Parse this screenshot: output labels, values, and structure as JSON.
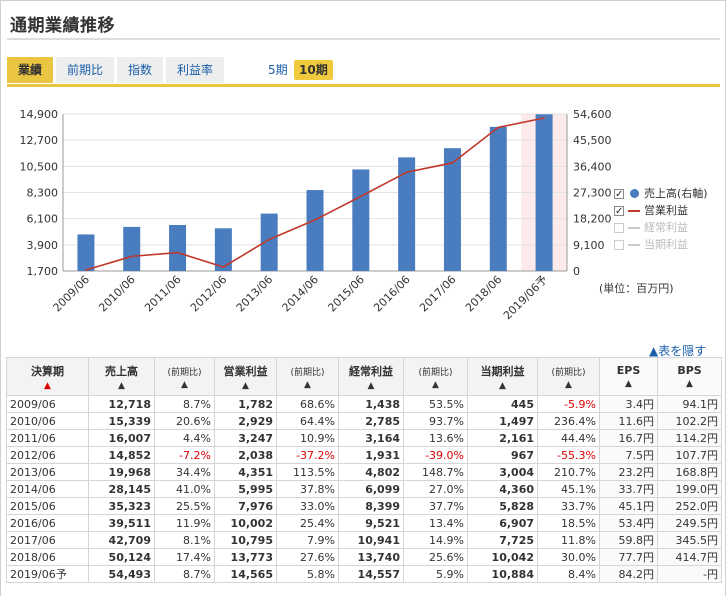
{
  "title": "通期業績推移",
  "tabs": [
    "業績",
    "前期比",
    "指数",
    "利益率"
  ],
  "periods": [
    "5期",
    "10期"
  ],
  "legend": [
    {
      "label": "売上高(右軸)",
      "checked": true
    },
    {
      "label": "営業利益",
      "checked": true
    },
    {
      "label": "経常利益",
      "checked": false
    },
    {
      "label": "当期利益",
      "checked": false
    }
  ],
  "unit_note": "(単位：百万円)",
  "hide_table": "▲表を隠す",
  "chart_data": {
    "type": "bar",
    "categories": [
      "2009/06",
      "2010/06",
      "2011/06",
      "2012/06",
      "2013/06",
      "2014/06",
      "2015/06",
      "2016/06",
      "2017/06",
      "2018/06",
      "2019/06予"
    ],
    "left_axis_ticks": [
      "14,900",
      "12,700",
      "10,500",
      "8,300",
      "6,100",
      "3,900",
      "1,700"
    ],
    "right_axis_ticks": [
      "54,600",
      "45,500",
      "36,400",
      "27,300",
      "18,200",
      "9,100",
      "0"
    ],
    "left_axis_range": [
      1700,
      14900
    ],
    "right_axis_range": [
      0,
      54600
    ],
    "series": [
      {
        "name": "売上高(右軸)",
        "type": "bar",
        "axis": "right",
        "color": "#4a7cc0",
        "values": [
          12718,
          15339,
          16007,
          14852,
          19968,
          28145,
          35323,
          39511,
          42709,
          50124,
          54493
        ]
      },
      {
        "name": "営業利益",
        "type": "line",
        "axis": "left",
        "color": "#c0392b",
        "values": [
          1782,
          2929,
          3247,
          2038,
          4351,
          5995,
          7976,
          10002,
          10795,
          13773,
          14565
        ]
      }
    ],
    "highlight_last": true,
    "grid": "horizontal"
  },
  "table": {
    "headers": {
      "year": "決算期",
      "sales": "売上高",
      "op": "営業利益",
      "ord": "経常利益",
      "net": "当期利益",
      "yoy": "(前期比)",
      "eps": "EPS",
      "bps": "BPS",
      "arrow_year": "▲",
      "arrow": "▲"
    },
    "rows": [
      [
        "2009/06",
        "12,718",
        "8.7%",
        "1,782",
        "68.6%",
        "1,438",
        "53.5%",
        "445",
        "-5.9%",
        "3.4円",
        "94.1円"
      ],
      [
        "2010/06",
        "15,339",
        "20.6%",
        "2,929",
        "64.4%",
        "2,785",
        "93.7%",
        "1,497",
        "236.4%",
        "11.6円",
        "102.2円"
      ],
      [
        "2011/06",
        "16,007",
        "4.4%",
        "3,247",
        "10.9%",
        "3,164",
        "13.6%",
        "2,161",
        "44.4%",
        "16.7円",
        "114.2円"
      ],
      [
        "2012/06",
        "14,852",
        "-7.2%",
        "2,038",
        "-37.2%",
        "1,931",
        "-39.0%",
        "967",
        "-55.3%",
        "7.5円",
        "107.7円"
      ],
      [
        "2013/06",
        "19,968",
        "34.4%",
        "4,351",
        "113.5%",
        "4,802",
        "148.7%",
        "3,004",
        "210.7%",
        "23.2円",
        "168.8円"
      ],
      [
        "2014/06",
        "28,145",
        "41.0%",
        "5,995",
        "37.8%",
        "6,099",
        "27.0%",
        "4,360",
        "45.1%",
        "33.7円",
        "199.0円"
      ],
      [
        "2015/06",
        "35,323",
        "25.5%",
        "7,976",
        "33.0%",
        "8,399",
        "37.7%",
        "5,828",
        "33.7%",
        "45.1円",
        "252.0円"
      ],
      [
        "2016/06",
        "39,511",
        "11.9%",
        "10,002",
        "25.4%",
        "9,521",
        "13.4%",
        "6,907",
        "18.5%",
        "53.4円",
        "249.5円"
      ],
      [
        "2017/06",
        "42,709",
        "8.1%",
        "10,795",
        "7.9%",
        "10,941",
        "14.9%",
        "7,725",
        "11.8%",
        "59.8円",
        "345.5円"
      ],
      [
        "2018/06",
        "50,124",
        "17.4%",
        "13,773",
        "27.6%",
        "13,740",
        "25.6%",
        "10,042",
        "30.0%",
        "77.7円",
        "414.7円"
      ],
      [
        "2019/06予",
        "54,493",
        "8.7%",
        "14,565",
        "5.8%",
        "14,557",
        "5.9%",
        "10,884",
        "8.4%",
        "84.2円",
        "-円"
      ]
    ]
  }
}
